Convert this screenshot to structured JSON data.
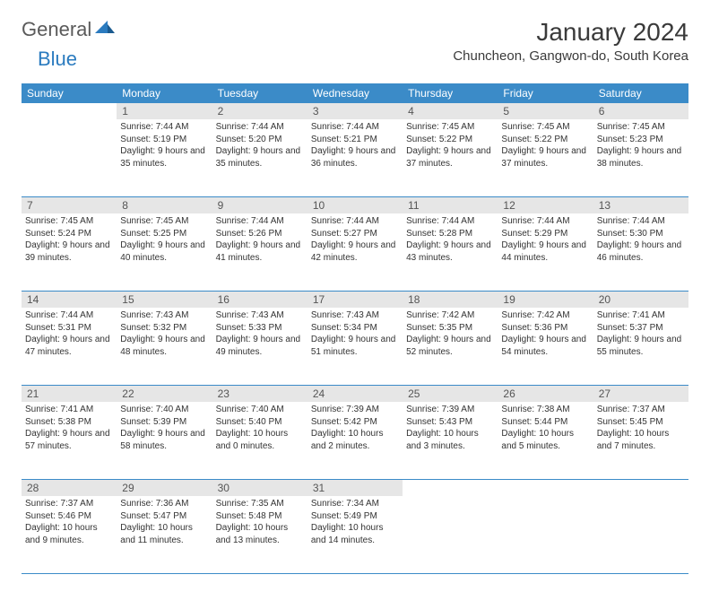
{
  "logo": {
    "general": "General",
    "blue": "Blue"
  },
  "title": "January 2024",
  "location": "Chuncheon, Gangwon-do, South Korea",
  "colors": {
    "header_bg": "#3b8bc8",
    "header_text": "#ffffff",
    "daynum_bg": "#e6e6e6",
    "daynum_text": "#555555",
    "body_text": "#333333",
    "border": "#3b8bc8",
    "logo_gray": "#5a5a5a",
    "logo_blue": "#2b7bbf"
  },
  "weekdays": [
    "Sunday",
    "Monday",
    "Tuesday",
    "Wednesday",
    "Thursday",
    "Friday",
    "Saturday"
  ],
  "weeks": [
    [
      {
        "n": "",
        "sr": "",
        "ss": "",
        "dl": ""
      },
      {
        "n": "1",
        "sr": "Sunrise: 7:44 AM",
        "ss": "Sunset: 5:19 PM",
        "dl": "Daylight: 9 hours and 35 minutes."
      },
      {
        "n": "2",
        "sr": "Sunrise: 7:44 AM",
        "ss": "Sunset: 5:20 PM",
        "dl": "Daylight: 9 hours and 35 minutes."
      },
      {
        "n": "3",
        "sr": "Sunrise: 7:44 AM",
        "ss": "Sunset: 5:21 PM",
        "dl": "Daylight: 9 hours and 36 minutes."
      },
      {
        "n": "4",
        "sr": "Sunrise: 7:45 AM",
        "ss": "Sunset: 5:22 PM",
        "dl": "Daylight: 9 hours and 37 minutes."
      },
      {
        "n": "5",
        "sr": "Sunrise: 7:45 AM",
        "ss": "Sunset: 5:22 PM",
        "dl": "Daylight: 9 hours and 37 minutes."
      },
      {
        "n": "6",
        "sr": "Sunrise: 7:45 AM",
        "ss": "Sunset: 5:23 PM",
        "dl": "Daylight: 9 hours and 38 minutes."
      }
    ],
    [
      {
        "n": "7",
        "sr": "Sunrise: 7:45 AM",
        "ss": "Sunset: 5:24 PM",
        "dl": "Daylight: 9 hours and 39 minutes."
      },
      {
        "n": "8",
        "sr": "Sunrise: 7:45 AM",
        "ss": "Sunset: 5:25 PM",
        "dl": "Daylight: 9 hours and 40 minutes."
      },
      {
        "n": "9",
        "sr": "Sunrise: 7:44 AM",
        "ss": "Sunset: 5:26 PM",
        "dl": "Daylight: 9 hours and 41 minutes."
      },
      {
        "n": "10",
        "sr": "Sunrise: 7:44 AM",
        "ss": "Sunset: 5:27 PM",
        "dl": "Daylight: 9 hours and 42 minutes."
      },
      {
        "n": "11",
        "sr": "Sunrise: 7:44 AM",
        "ss": "Sunset: 5:28 PM",
        "dl": "Daylight: 9 hours and 43 minutes."
      },
      {
        "n": "12",
        "sr": "Sunrise: 7:44 AM",
        "ss": "Sunset: 5:29 PM",
        "dl": "Daylight: 9 hours and 44 minutes."
      },
      {
        "n": "13",
        "sr": "Sunrise: 7:44 AM",
        "ss": "Sunset: 5:30 PM",
        "dl": "Daylight: 9 hours and 46 minutes."
      }
    ],
    [
      {
        "n": "14",
        "sr": "Sunrise: 7:44 AM",
        "ss": "Sunset: 5:31 PM",
        "dl": "Daylight: 9 hours and 47 minutes."
      },
      {
        "n": "15",
        "sr": "Sunrise: 7:43 AM",
        "ss": "Sunset: 5:32 PM",
        "dl": "Daylight: 9 hours and 48 minutes."
      },
      {
        "n": "16",
        "sr": "Sunrise: 7:43 AM",
        "ss": "Sunset: 5:33 PM",
        "dl": "Daylight: 9 hours and 49 minutes."
      },
      {
        "n": "17",
        "sr": "Sunrise: 7:43 AM",
        "ss": "Sunset: 5:34 PM",
        "dl": "Daylight: 9 hours and 51 minutes."
      },
      {
        "n": "18",
        "sr": "Sunrise: 7:42 AM",
        "ss": "Sunset: 5:35 PM",
        "dl": "Daylight: 9 hours and 52 minutes."
      },
      {
        "n": "19",
        "sr": "Sunrise: 7:42 AM",
        "ss": "Sunset: 5:36 PM",
        "dl": "Daylight: 9 hours and 54 minutes."
      },
      {
        "n": "20",
        "sr": "Sunrise: 7:41 AM",
        "ss": "Sunset: 5:37 PM",
        "dl": "Daylight: 9 hours and 55 minutes."
      }
    ],
    [
      {
        "n": "21",
        "sr": "Sunrise: 7:41 AM",
        "ss": "Sunset: 5:38 PM",
        "dl": "Daylight: 9 hours and 57 minutes."
      },
      {
        "n": "22",
        "sr": "Sunrise: 7:40 AM",
        "ss": "Sunset: 5:39 PM",
        "dl": "Daylight: 9 hours and 58 minutes."
      },
      {
        "n": "23",
        "sr": "Sunrise: 7:40 AM",
        "ss": "Sunset: 5:40 PM",
        "dl": "Daylight: 10 hours and 0 minutes."
      },
      {
        "n": "24",
        "sr": "Sunrise: 7:39 AM",
        "ss": "Sunset: 5:42 PM",
        "dl": "Daylight: 10 hours and 2 minutes."
      },
      {
        "n": "25",
        "sr": "Sunrise: 7:39 AM",
        "ss": "Sunset: 5:43 PM",
        "dl": "Daylight: 10 hours and 3 minutes."
      },
      {
        "n": "26",
        "sr": "Sunrise: 7:38 AM",
        "ss": "Sunset: 5:44 PM",
        "dl": "Daylight: 10 hours and 5 minutes."
      },
      {
        "n": "27",
        "sr": "Sunrise: 7:37 AM",
        "ss": "Sunset: 5:45 PM",
        "dl": "Daylight: 10 hours and 7 minutes."
      }
    ],
    [
      {
        "n": "28",
        "sr": "Sunrise: 7:37 AM",
        "ss": "Sunset: 5:46 PM",
        "dl": "Daylight: 10 hours and 9 minutes."
      },
      {
        "n": "29",
        "sr": "Sunrise: 7:36 AM",
        "ss": "Sunset: 5:47 PM",
        "dl": "Daylight: 10 hours and 11 minutes."
      },
      {
        "n": "30",
        "sr": "Sunrise: 7:35 AM",
        "ss": "Sunset: 5:48 PM",
        "dl": "Daylight: 10 hours and 13 minutes."
      },
      {
        "n": "31",
        "sr": "Sunrise: 7:34 AM",
        "ss": "Sunset: 5:49 PM",
        "dl": "Daylight: 10 hours and 14 minutes."
      },
      {
        "n": "",
        "sr": "",
        "ss": "",
        "dl": ""
      },
      {
        "n": "",
        "sr": "",
        "ss": "",
        "dl": ""
      },
      {
        "n": "",
        "sr": "",
        "ss": "",
        "dl": ""
      }
    ]
  ]
}
